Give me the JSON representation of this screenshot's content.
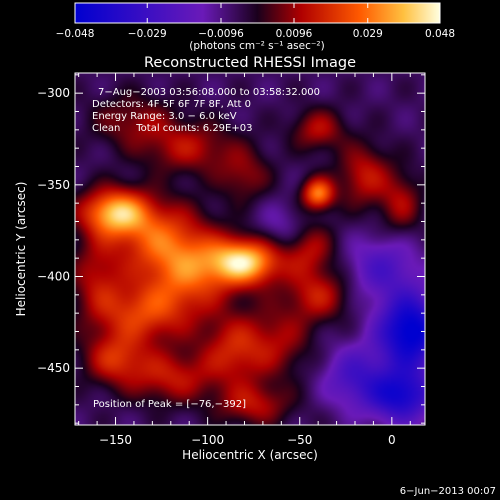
{
  "chart_data": {
    "type": "heatmap",
    "title": "Reconstructed RHESSI Image",
    "xlabel": "Heliocentric X (arcsec)",
    "ylabel": "Heliocentric Y (arcsec)",
    "xlim": [
      -172,
      18
    ],
    "ylim": [
      -481,
      -289
    ],
    "x_ticks": [
      -150,
      -100,
      -50,
      0
    ],
    "y_ticks": [
      -300,
      -350,
      -400,
      -450
    ],
    "x_tick_labels": [
      "−150",
      "−100",
      "−50",
      "0"
    ],
    "y_tick_labels": [
      "−300",
      "−350",
      "−400",
      "−450"
    ],
    "colorbar": {
      "min": -0.048,
      "max": 0.048,
      "ticks": [
        -0.048,
        -0.029,
        -0.0096,
        0.0096,
        0.029,
        0.048
      ],
      "tick_labels": [
        "−0.048",
        "−0.029",
        "−0.0096",
        "0.0096",
        "0.029",
        "0.048"
      ],
      "unit_label": "(photons cm⁻² s⁻¹ asec⁻²)"
    },
    "annotations": [
      "7−Aug−2003 03:56:08.000  to  03:58:32.000",
      "Detectors: 4F 5F 6F 7F 8F, Att 0",
      "Energy Range: 3.0 − 6.0 keV",
      "Clean     Total counts: 6.29E+03",
      "Position of Peak = [−76,−392]"
    ],
    "peak": {
      "x": -76,
      "y": -392
    },
    "sources": [
      {
        "x": -80,
        "y": -392,
        "amp": 0.048,
        "sx": 14,
        "sy": 9
      },
      {
        "x": -150,
        "y": -365,
        "amp": 0.042,
        "sx": 13,
        "sy": 9
      },
      {
        "x": -125,
        "y": -380,
        "amp": 0.028,
        "sx": 18,
        "sy": 14
      },
      {
        "x": -110,
        "y": -400,
        "amp": 0.024,
        "sx": 16,
        "sy": 14
      },
      {
        "x": -135,
        "y": -420,
        "amp": 0.026,
        "sx": 18,
        "sy": 12
      },
      {
        "x": -150,
        "y": -445,
        "amp": 0.022,
        "sx": 12,
        "sy": 10
      },
      {
        "x": -120,
        "y": -455,
        "amp": 0.02,
        "sx": 16,
        "sy": 10
      },
      {
        "x": -85,
        "y": -440,
        "amp": 0.022,
        "sx": 13,
        "sy": 14
      },
      {
        "x": -75,
        "y": -470,
        "amp": 0.018,
        "sx": 14,
        "sy": 8
      },
      {
        "x": -110,
        "y": -330,
        "amp": 0.018,
        "sx": 18,
        "sy": 10
      },
      {
        "x": -140,
        "y": -315,
        "amp": 0.014,
        "sx": 16,
        "sy": 10
      },
      {
        "x": -80,
        "y": -345,
        "amp": 0.014,
        "sx": 10,
        "sy": 10
      },
      {
        "x": -40,
        "y": -355,
        "amp": 0.036,
        "sx": 6,
        "sy": 6
      },
      {
        "x": -15,
        "y": -345,
        "amp": 0.02,
        "sx": 10,
        "sy": 12
      },
      {
        "x": 5,
        "y": -360,
        "amp": 0.016,
        "sx": 8,
        "sy": 12
      },
      {
        "x": -40,
        "y": -320,
        "amp": 0.018,
        "sx": 10,
        "sy": 8
      },
      {
        "x": -45,
        "y": -385,
        "amp": 0.018,
        "sx": 10,
        "sy": 10
      },
      {
        "x": -40,
        "y": -410,
        "amp": 0.02,
        "sx": 12,
        "sy": 10
      },
      {
        "x": -60,
        "y": -435,
        "amp": 0.014,
        "sx": 12,
        "sy": 14
      },
      {
        "x": -160,
        "y": -400,
        "amp": 0.016,
        "sx": 10,
        "sy": 16
      },
      {
        "x": 10,
        "y": -430,
        "amp": -0.045,
        "sx": 12,
        "sy": 14
      },
      {
        "x": 5,
        "y": -465,
        "amp": -0.035,
        "sx": 12,
        "sy": 10
      },
      {
        "x": -20,
        "y": -455,
        "amp": -0.02,
        "sx": 12,
        "sy": 12
      },
      {
        "x": -5,
        "y": -395,
        "amp": -0.018,
        "sx": 14,
        "sy": 12
      },
      {
        "x": -60,
        "y": -375,
        "amp": -0.01,
        "sx": 10,
        "sy": 10
      }
    ]
  },
  "footer": {
    "date": "6−Jun−2013 00:07"
  }
}
